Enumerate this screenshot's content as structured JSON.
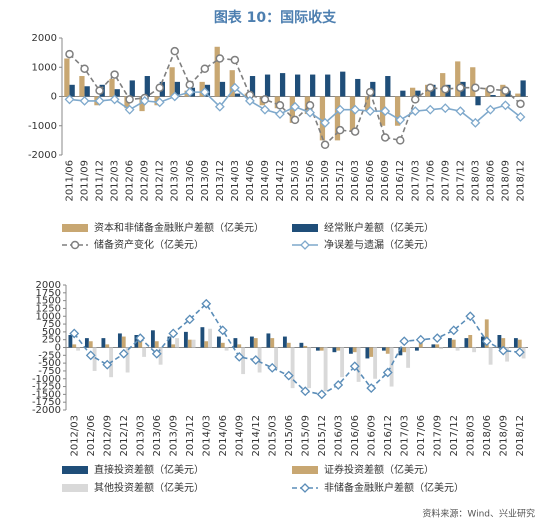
{
  "title": "图表 10：国际收支",
  "source": "资料来源：Wind、兴业研究",
  "chart_data": [
    {
      "type": "bar",
      "ylim": [
        -2000,
        2000
      ],
      "yticks": [
        -2000,
        -1000,
        0,
        1000,
        2000
      ],
      "categories": [
        "2011/06",
        "2011/09",
        "2011/12",
        "2012/03",
        "2012/06",
        "2012/09",
        "2012/12",
        "2013/03",
        "2013/06",
        "2013/09",
        "2013/12",
        "2014/03",
        "2014/06",
        "2014/09",
        "2014/12",
        "2015/03",
        "2015/06",
        "2015/09",
        "2015/12",
        "2016/03",
        "2016/06",
        "2016/09",
        "2016/12",
        "2017/03",
        "2017/06",
        "2017/09",
        "2017/12",
        "2018/03",
        "2018/06",
        "2018/09",
        "2018/12"
      ],
      "series": [
        {
          "name": "资本和非储备金融账户差额（亿美元）",
          "type": "bar",
          "color": "#c8a772",
          "values": [
            1300,
            700,
            -300,
            600,
            -400,
            -500,
            -300,
            1000,
            200,
            500,
            1700,
            900,
            100,
            -300,
            -400,
            -900,
            -600,
            -1500,
            -1500,
            -1200,
            -500,
            -1000,
            -1000,
            300,
            400,
            800,
            1200,
            1000,
            300,
            400,
            100
          ]
        },
        {
          "name": "经常账户差额（亿美元）",
          "type": "bar",
          "color": "#1f4e79",
          "values": [
            400,
            350,
            400,
            250,
            550,
            700,
            500,
            500,
            300,
            400,
            500,
            100,
            700,
            750,
            800,
            750,
            750,
            750,
            850,
            600,
            500,
            700,
            200,
            200,
            400,
            400,
            500,
            -300,
            50,
            200,
            550
          ]
        },
        {
          "name": "储备资产变化（亿美元）",
          "type": "line",
          "color": "#7f7f7f",
          "dash": true,
          "marker": "circle",
          "values": [
            1450,
            950,
            200,
            750,
            -100,
            -50,
            300,
            1550,
            400,
            950,
            1300,
            1250,
            50,
            -100,
            -300,
            -800,
            -300,
            -1650,
            -1150,
            -1200,
            150,
            -1400,
            -1500,
            -100,
            300,
            250,
            300,
            300,
            250,
            200,
            -250
          ]
        },
        {
          "name": "净误差与遗漏（亿美元）",
          "type": "line",
          "color": "#7fa9cc",
          "dash": false,
          "marker": "diamond",
          "values": [
            -100,
            -150,
            -150,
            -100,
            -450,
            -150,
            -200,
            0,
            150,
            150,
            -350,
            300,
            -150,
            -450,
            -600,
            -350,
            -550,
            -900,
            -450,
            -450,
            -500,
            -500,
            -800,
            -500,
            -450,
            -400,
            -500,
            -900,
            -450,
            -300,
            -700
          ]
        }
      ]
    },
    {
      "type": "bar",
      "ylim": [
        -2000,
        2000
      ],
      "yticks": [
        -2000,
        -1750,
        -1500,
        -1250,
        -1000,
        -750,
        -500,
        -250,
        0,
        250,
        500,
        750,
        1000,
        1250,
        1500,
        1750,
        2000
      ],
      "categories": [
        "2012/03",
        "2012/06",
        "2012/09",
        "2012/12",
        "2013/03",
        "2013/06",
        "2013/09",
        "2013/12",
        "2014/03",
        "2014/06",
        "2014/09",
        "2014/12",
        "2015/03",
        "2015/06",
        "2015/09",
        "2015/12",
        "2016/03",
        "2016/06",
        "2016/09",
        "2016/12",
        "2017/03",
        "2017/06",
        "2017/09",
        "2017/12",
        "2018/03",
        "2018/06",
        "2018/09",
        "2018/12"
      ],
      "series": [
        {
          "name": "直接投资差额（亿美元）",
          "type": "bar",
          "color": "#1f4e79",
          "values": [
            400,
            300,
            300,
            450,
            400,
            550,
            350,
            500,
            650,
            350,
            300,
            350,
            450,
            350,
            150,
            -100,
            -150,
            -200,
            -350,
            -100,
            -250,
            -100,
            100,
            300,
            300,
            350,
            400,
            300
          ]
        },
        {
          "name": "证券投资差额（亿美元）",
          "type": "bar",
          "color": "#c8a772",
          "values": [
            100,
            200,
            100,
            350,
            350,
            200,
            100,
            250,
            200,
            150,
            100,
            300,
            300,
            150,
            50,
            -100,
            -100,
            -150,
            -300,
            -200,
            -150,
            150,
            100,
            250,
            400,
            900,
            300,
            250
          ]
        },
        {
          "name": "其他投资差额（亿美元）",
          "type": "bar",
          "color": "#d9d9d9",
          "values": [
            -100,
            -750,
            -950,
            -800,
            -300,
            -550,
            300,
            250,
            600,
            -100,
            -850,
            -800,
            -700,
            -1300,
            -1300,
            -1400,
            -950,
            -1100,
            -1000,
            -1250,
            -650,
            0,
            -50,
            -100,
            -150,
            -550,
            -450,
            -350
          ]
        },
        {
          "name": "非储备金融账户差额（亿美元）",
          "type": "line",
          "color": "#5b8db8",
          "dash": true,
          "marker": "diamond",
          "values": [
            450,
            -250,
            -550,
            -200,
            300,
            -200,
            450,
            900,
            1400,
            550,
            -300,
            -400,
            -650,
            -900,
            -1400,
            -1500,
            -1200,
            -600,
            -1300,
            -800,
            200,
            250,
            300,
            550,
            1000,
            200,
            -100,
            -150
          ]
        }
      ]
    }
  ]
}
